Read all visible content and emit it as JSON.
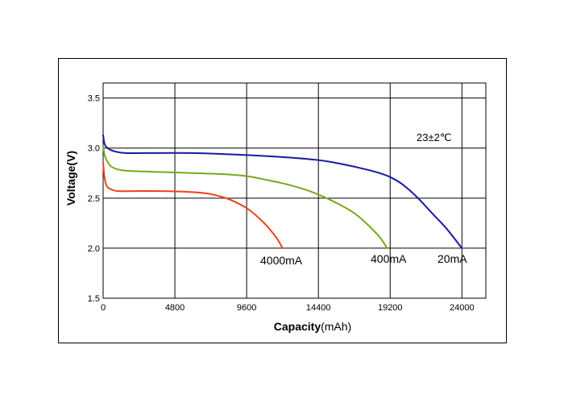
{
  "chart_data": {
    "type": "line",
    "xlabel": "Capacity",
    "xlabel_unit": "(mAh)",
    "ylabel": "Voltage(V)",
    "xlim": [
      0,
      25600
    ],
    "ylim": [
      1.5,
      3.65
    ],
    "x_ticks": [
      0,
      4800,
      9600,
      14400,
      19200,
      24000
    ],
    "x_tick_labels": [
      "0",
      "4800",
      "9600",
      "14400",
      "19200",
      "24000"
    ],
    "y_ticks": [
      1.5,
      2.0,
      2.5,
      3.0,
      3.5
    ],
    "y_tick_labels": [
      "1.5",
      "2.0",
      "2.5",
      "3.0",
      "3.5"
    ],
    "grid": true,
    "annotation": "23±2℃",
    "series": [
      {
        "name": "20mA",
        "color": "#1a1aa0",
        "x": [
          0,
          100,
          300,
          700,
          1500,
          3000,
          6000,
          9600,
          12000,
          14400,
          16000,
          17500,
          18500,
          19200,
          20000,
          21000,
          22000,
          23000,
          24000
        ],
        "y": [
          3.13,
          3.04,
          3.0,
          2.97,
          2.95,
          2.95,
          2.95,
          2.93,
          2.91,
          2.88,
          2.84,
          2.79,
          2.75,
          2.71,
          2.64,
          2.51,
          2.35,
          2.19,
          2.0
        ]
      },
      {
        "name": "400mA",
        "color": "#7aa81a",
        "x": [
          0,
          100,
          300,
          600,
          1200,
          2000,
          4000,
          6000,
          8000,
          9600,
          11000,
          12500,
          14000,
          15500,
          16800,
          17800,
          18500,
          19000
        ],
        "y": [
          3.02,
          2.93,
          2.86,
          2.81,
          2.78,
          2.77,
          2.76,
          2.75,
          2.74,
          2.72,
          2.68,
          2.63,
          2.56,
          2.46,
          2.35,
          2.22,
          2.11,
          2.0
        ]
      },
      {
        "name": "4000mA",
        "color": "#f0401a",
        "x": [
          0,
          100,
          250,
          500,
          1000,
          2000,
          4000,
          6000,
          7200,
          8400,
          9600,
          10500,
          11200,
          11700,
          12000
        ],
        "y": [
          2.85,
          2.7,
          2.62,
          2.59,
          2.57,
          2.57,
          2.57,
          2.56,
          2.54,
          2.49,
          2.4,
          2.29,
          2.18,
          2.08,
          2.0
        ]
      }
    ]
  }
}
